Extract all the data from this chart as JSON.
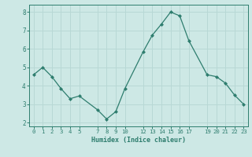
{
  "x": [
    0,
    1,
    2,
    3,
    4,
    5,
    7,
    8,
    9,
    10,
    12,
    13,
    14,
    15,
    16,
    17,
    19,
    20,
    21,
    22,
    23
  ],
  "y": [
    4.6,
    5.0,
    4.5,
    3.85,
    3.3,
    3.45,
    2.7,
    2.2,
    2.6,
    3.85,
    5.85,
    6.75,
    7.35,
    8.0,
    7.8,
    6.45,
    4.6,
    4.5,
    4.15,
    3.5,
    3.0
  ],
  "line_color": "#2e7d6e",
  "marker_color": "#2e7d6e",
  "bg_color": "#cde8e5",
  "grid_color": "#b8d8d5",
  "axis_color": "#2e7d6e",
  "tick_color": "#2e7d6e",
  "xlabel": "Humidex (Indice chaleur)",
  "xlim": [
    -0.5,
    23.5
  ],
  "ylim": [
    1.8,
    8.4
  ],
  "xticks": [
    0,
    1,
    2,
    3,
    4,
    5,
    7,
    8,
    9,
    10,
    12,
    13,
    14,
    15,
    16,
    17,
    19,
    20,
    21,
    22,
    23
  ],
  "yticks": [
    2,
    3,
    4,
    5,
    6,
    7,
    8
  ],
  "xlabel_fontsize": 6.0,
  "tick_fontsize": 5.2
}
